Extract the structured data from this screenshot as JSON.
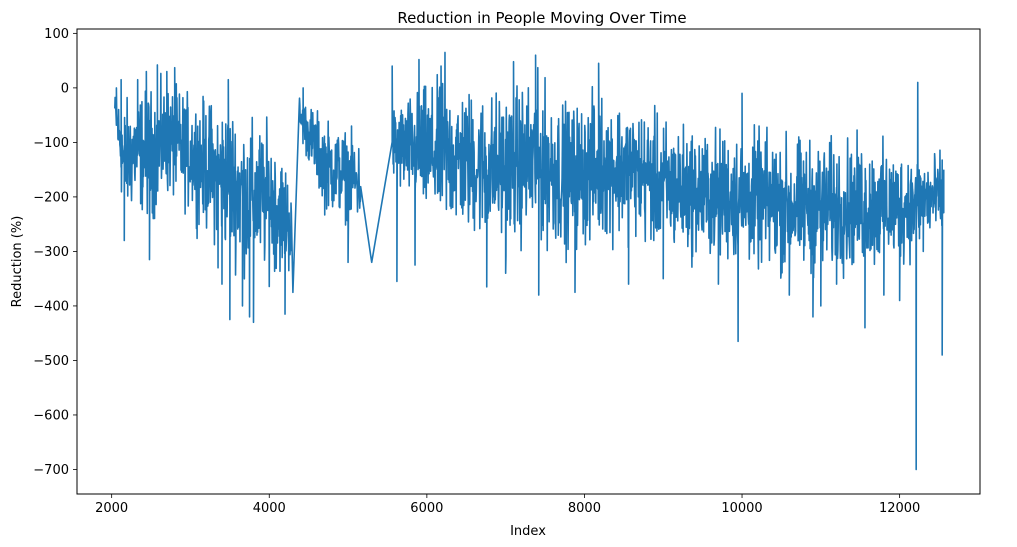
{
  "chart_data": {
    "type": "line",
    "title": "Reduction in People Moving Over Time",
    "xlabel": "Index",
    "ylabel": "Reduction (%)",
    "xlim": [
      1560,
      13020
    ],
    "ylim": [
      -745,
      108
    ],
    "xticks": [
      2000,
      4000,
      6000,
      8000,
      10000,
      12000
    ],
    "yticks": [
      100,
      0,
      -100,
      -200,
      -300,
      -400,
      -500,
      -600,
      -700
    ],
    "grid": false,
    "series": [
      {
        "color": "#1f77b4",
        "x_start": 2040,
        "x_end": 12560,
        "gaps": [
          [
            4280,
            4380
          ],
          [
            5160,
            5560
          ]
        ],
        "envelope_note": "dense fluctuating series; anchors give approximate envelope (low, high) in data units",
        "anchors": [
          [
            2040,
            -80,
            0
          ],
          [
            2150,
            -280,
            10
          ],
          [
            2300,
            -250,
            20
          ],
          [
            2500,
            -280,
            35
          ],
          [
            2700,
            -230,
            35
          ],
          [
            3000,
            -260,
            20
          ],
          [
            3300,
            -320,
            10
          ],
          [
            3500,
            -350,
            15
          ],
          [
            3700,
            -380,
            -20
          ],
          [
            4000,
            -380,
            -30
          ],
          [
            4280,
            -370,
            -130
          ],
          [
            4380,
            -100,
            0
          ],
          [
            4700,
            -250,
            -30
          ],
          [
            5160,
            -280,
            -70
          ],
          [
            5560,
            -200,
            -10
          ],
          [
            6000,
            -280,
            40
          ],
          [
            6300,
            -300,
            50
          ],
          [
            6700,
            -320,
            30
          ],
          [
            7000,
            -330,
            40
          ],
          [
            7400,
            -330,
            60
          ],
          [
            7800,
            -340,
            10
          ],
          [
            8200,
            -320,
            30
          ],
          [
            8600,
            -310,
            10
          ],
          [
            9000,
            -340,
            -20
          ],
          [
            9500,
            -350,
            -40
          ],
          [
            10000,
            -360,
            -40
          ],
          [
            10500,
            -380,
            -50
          ],
          [
            11000,
            -380,
            -60
          ],
          [
            11500,
            -370,
            -60
          ],
          [
            12000,
            -360,
            -80
          ],
          [
            12300,
            -320,
            -90
          ],
          [
            12560,
            -300,
            -100
          ]
        ],
        "spikes": [
          [
            2060,
            0
          ],
          [
            2120,
            15
          ],
          [
            2160,
            -280
          ],
          [
            2330,
            15
          ],
          [
            2440,
            30
          ],
          [
            2480,
            -315
          ],
          [
            2580,
            42
          ],
          [
            2700,
            30
          ],
          [
            2800,
            37
          ],
          [
            3350,
            -330
          ],
          [
            3400,
            -360
          ],
          [
            3480,
            15
          ],
          [
            3500,
            -425
          ],
          [
            3660,
            -400
          ],
          [
            3750,
            -420
          ],
          [
            3800,
            -430
          ],
          [
            4200,
            -415
          ],
          [
            4300,
            -375
          ],
          [
            4430,
            0
          ],
          [
            5000,
            -320
          ],
          [
            5300,
            -320
          ],
          [
            5560,
            40
          ],
          [
            5620,
            -355
          ],
          [
            5850,
            -325
          ],
          [
            5900,
            52
          ],
          [
            6180,
            40
          ],
          [
            6230,
            65
          ],
          [
            6760,
            -365
          ],
          [
            7000,
            -340
          ],
          [
            7100,
            48
          ],
          [
            7380,
            60
          ],
          [
            7420,
            -380
          ],
          [
            7880,
            -375
          ],
          [
            8180,
            45
          ],
          [
            8560,
            -360
          ],
          [
            9000,
            -350
          ],
          [
            9700,
            -360
          ],
          [
            9950,
            -465
          ],
          [
            10000,
            -10
          ],
          [
            10600,
            -380
          ],
          [
            10900,
            -420
          ],
          [
            11000,
            -400
          ],
          [
            11200,
            -360
          ],
          [
            11560,
            -440
          ],
          [
            11800,
            -380
          ],
          [
            12000,
            -390
          ],
          [
            12210,
            -700
          ],
          [
            12230,
            10
          ],
          [
            12300,
            -300
          ],
          [
            12540,
            -490
          ],
          [
            12560,
            -150
          ]
        ]
      }
    ]
  }
}
